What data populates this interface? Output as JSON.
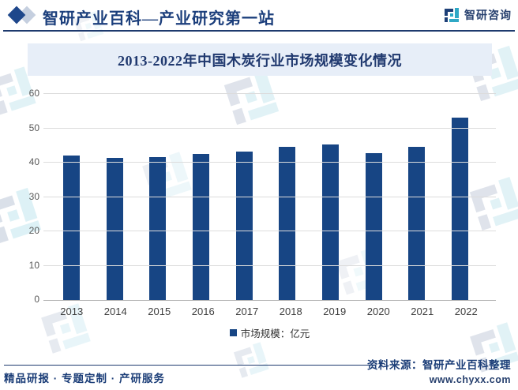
{
  "header": {
    "title": "智研产业百科—产业研究第一站",
    "brand": "智研咨询"
  },
  "banner": {
    "title": "2013-2022年中国木炭行业市场规模变化情况"
  },
  "chart_data": {
    "type": "bar",
    "title": "2013-2022年中国木炭行业市场规模变化情况",
    "categories": [
      "2013",
      "2014",
      "2015",
      "2016",
      "2017",
      "2018",
      "2019",
      "2020",
      "2021",
      "2022"
    ],
    "series": [
      {
        "name": "市场规模：亿元",
        "values": [
          42.0,
          41.4,
          41.6,
          42.5,
          43.2,
          44.7,
          45.2,
          42.7,
          44.5,
          53.2
        ]
      }
    ],
    "xlabel": "",
    "ylabel": "",
    "ylim": [
      0,
      60
    ],
    "yticks": [
      0,
      10,
      20,
      30,
      40,
      50,
      60
    ],
    "grid": true,
    "legend_position": "bottom",
    "bar_color": "#174584"
  },
  "footer": {
    "left": "精品研报 · 专题定制 · 产研服务",
    "source": "资料来源：智研产业百科整理",
    "website": "www.chyxx.com"
  },
  "colors": {
    "bar": "#174584",
    "navy": "#1c3e78",
    "teal": "#2fa8c5",
    "banner_bg": "#e7eef8",
    "gridline": "#dcdcdc"
  }
}
